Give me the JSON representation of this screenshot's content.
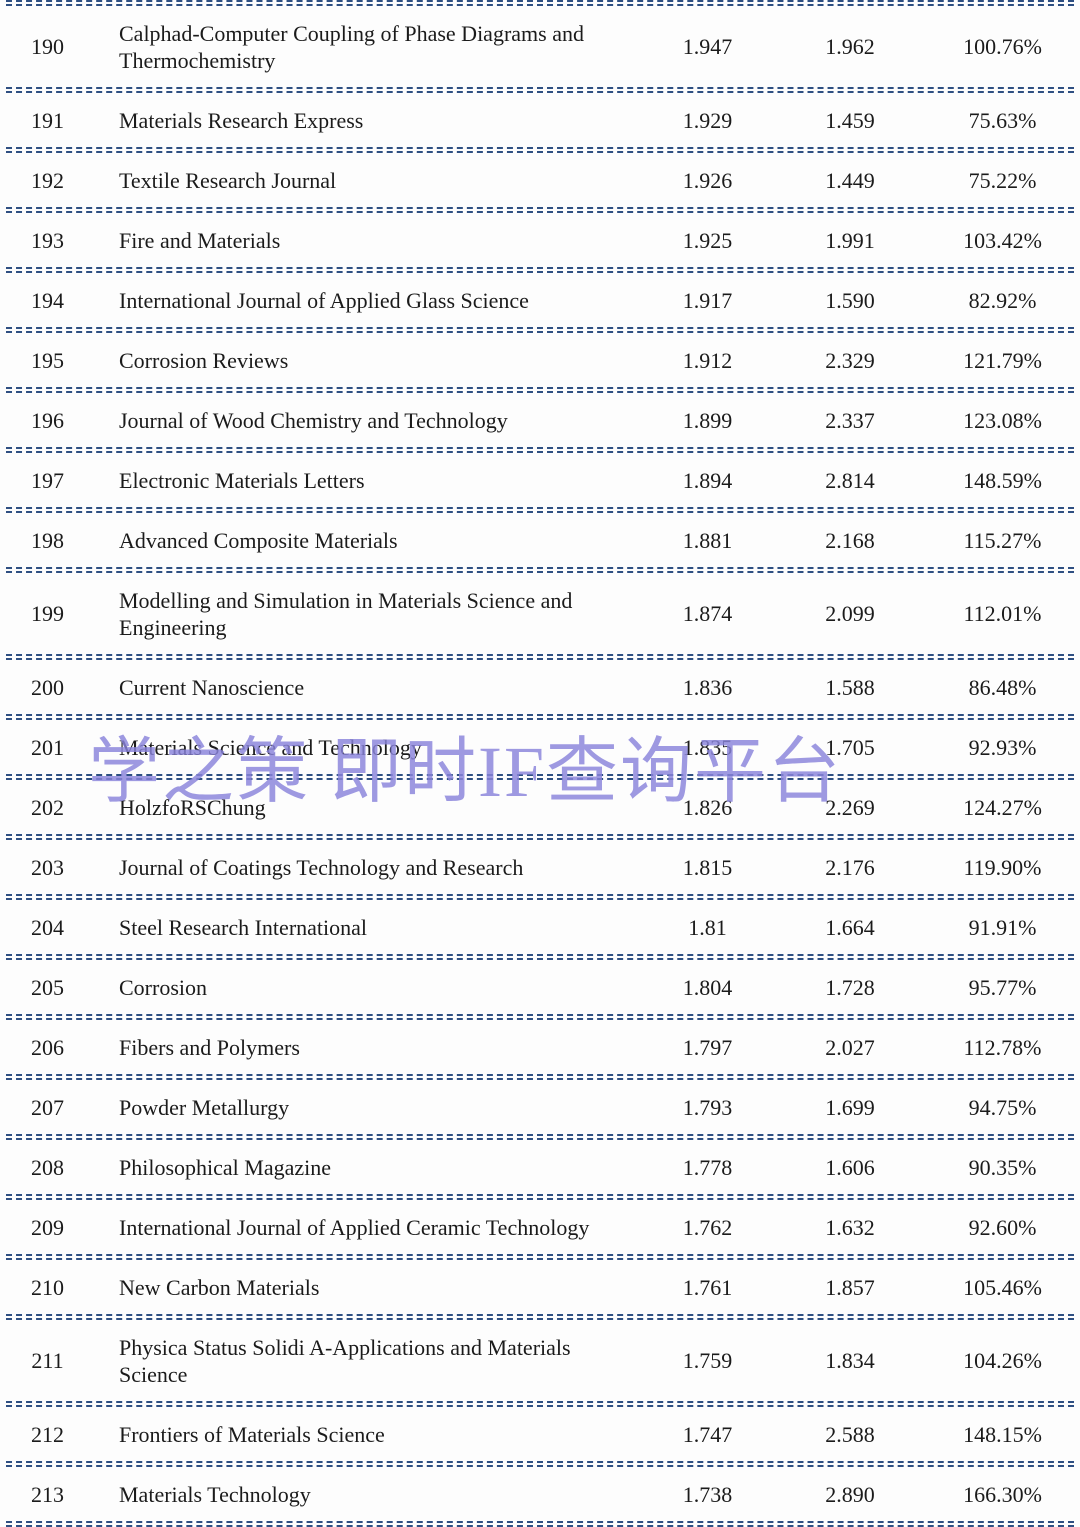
{
  "watermark": {
    "text": "学之策 即时IF查询平台",
    "color": "#8a84dc"
  },
  "colors": {
    "separator": "#2e4f82",
    "text": "#1b1b1b"
  },
  "table": {
    "rows": [
      {
        "rank": "190",
        "journal": "Calphad-Computer Coupling of Phase Diagrams and Thermochemistry",
        "if_value": "1.947",
        "instant_if": "1.962",
        "ratio": "100.76%"
      },
      {
        "rank": "191",
        "journal": "Materials Research Express",
        "if_value": "1.929",
        "instant_if": "1.459",
        "ratio": "75.63%"
      },
      {
        "rank": "192",
        "journal": "Textile Research Journal",
        "if_value": "1.926",
        "instant_if": "1.449",
        "ratio": "75.22%"
      },
      {
        "rank": "193",
        "journal": "Fire and Materials",
        "if_value": "1.925",
        "instant_if": "1.991",
        "ratio": "103.42%"
      },
      {
        "rank": "194",
        "journal": "International Journal of Applied Glass Science",
        "if_value": "1.917",
        "instant_if": "1.590",
        "ratio": "82.92%"
      },
      {
        "rank": "195",
        "journal": "Corrosion Reviews",
        "if_value": "1.912",
        "instant_if": "2.329",
        "ratio": "121.79%"
      },
      {
        "rank": "196",
        "journal": "Journal of Wood Chemistry and Technology",
        "if_value": "1.899",
        "instant_if": "2.337",
        "ratio": "123.08%"
      },
      {
        "rank": "197",
        "journal": "Electronic Materials Letters",
        "if_value": "1.894",
        "instant_if": "2.814",
        "ratio": "148.59%"
      },
      {
        "rank": "198",
        "journal": "Advanced Composite Materials",
        "if_value": "1.881",
        "instant_if": "2.168",
        "ratio": "115.27%"
      },
      {
        "rank": "199",
        "journal": "Modelling and Simulation in Materials Science and Engineering",
        "if_value": "1.874",
        "instant_if": "2.099",
        "ratio": "112.01%"
      },
      {
        "rank": "200",
        "journal": "Current Nanoscience",
        "if_value": "1.836",
        "instant_if": "1.588",
        "ratio": "86.48%"
      },
      {
        "rank": "201",
        "journal": "Materials Science and Technology",
        "if_value": "1.835",
        "instant_if": "1.705",
        "ratio": "92.93%"
      },
      {
        "rank": "202",
        "journal": "HolzfoRSChung",
        "if_value": "1.826",
        "instant_if": "2.269",
        "ratio": "124.27%"
      },
      {
        "rank": "203",
        "journal": "Journal of Coatings Technology and Research",
        "if_value": "1.815",
        "instant_if": "2.176",
        "ratio": "119.90%"
      },
      {
        "rank": "204",
        "journal": "Steel Research International",
        "if_value": "1.81",
        "instant_if": "1.664",
        "ratio": "91.91%"
      },
      {
        "rank": "205",
        "journal": "Corrosion",
        "if_value": "1.804",
        "instant_if": "1.728",
        "ratio": "95.77%"
      },
      {
        "rank": "206",
        "journal": "Fibers and Polymers",
        "if_value": "1.797",
        "instant_if": "2.027",
        "ratio": "112.78%"
      },
      {
        "rank": "207",
        "journal": "Powder Metallurgy",
        "if_value": "1.793",
        "instant_if": "1.699",
        "ratio": "94.75%"
      },
      {
        "rank": "208",
        "journal": "Philosophical Magazine",
        "if_value": "1.778",
        "instant_if": "1.606",
        "ratio": "90.35%"
      },
      {
        "rank": "209",
        "journal": "International Journal of Applied Ceramic Technology",
        "if_value": "1.762",
        "instant_if": "1.632",
        "ratio": "92.60%"
      },
      {
        "rank": "210",
        "journal": "New Carbon Materials",
        "if_value": "1.761",
        "instant_if": "1.857",
        "ratio": "105.46%"
      },
      {
        "rank": "211",
        "journal": "Physica Status Solidi A-Applications and Materials Science",
        "if_value": "1.759",
        "instant_if": "1.834",
        "ratio": "104.26%"
      },
      {
        "rank": "212",
        "journal": "Frontiers of Materials Science",
        "if_value": "1.747",
        "instant_if": "2.588",
        "ratio": "148.15%"
      },
      {
        "rank": "213",
        "journal": "Materials Technology",
        "if_value": "1.738",
        "instant_if": "2.890",
        "ratio": "166.30%"
      }
    ]
  }
}
